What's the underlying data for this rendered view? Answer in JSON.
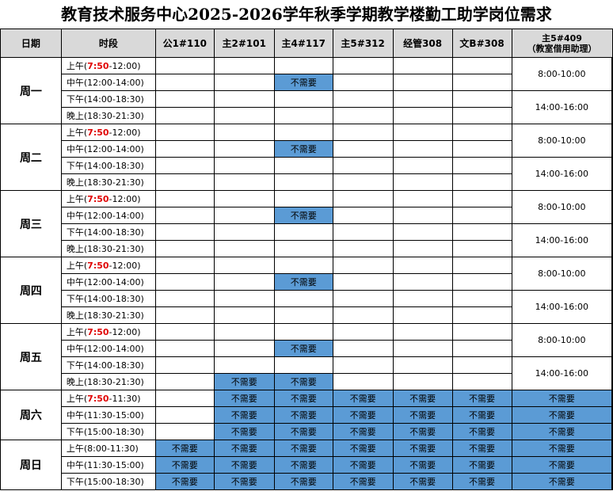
{
  "title": "教育技术服务中心2025-2026学年秋季学期教学楼勤工助学岗位需求",
  "headers": [
    "日期",
    "时段",
    "公1#110",
    "主2#101",
    "主4#117",
    "主5#312",
    "经管308",
    "文B#308",
    "主5#409",
    "（教室借用助理）"
  ],
  "weekday_periods": [
    {
      "prefix": "上午(",
      "red": "7:50",
      "suffix": "-12:00)"
    },
    {
      "prefix": "中午(12:00-14:00)",
      "red": "",
      "suffix": ""
    },
    {
      "prefix": "下午(14:00-18:30)",
      "red": "",
      "suffix": ""
    },
    {
      "prefix": "晚上(18:30-21:30)",
      "red": "",
      "suffix": ""
    }
  ],
  "saturday_periods": [
    {
      "prefix": "上午(",
      "red": "7:50",
      "suffix": "-11:30)"
    },
    {
      "prefix": "中午(11:30-15:00)",
      "red": "",
      "suffix": ""
    },
    {
      "prefix": "下午(15:00-18:30)",
      "red": "",
      "suffix": ""
    }
  ],
  "sunday_periods": [
    {
      "prefix": "上午(8:00-11:30)",
      "red": "",
      "suffix": ""
    },
    {
      "prefix": "中午(11:30-15:00)",
      "red": "",
      "suffix": ""
    },
    {
      "prefix": "下午(15:00-18:30)",
      "red": "",
      "suffix": ""
    }
  ],
  "weekdays": [
    "周一",
    "周二",
    "周三",
    "周四",
    "周五"
  ],
  "saturday": "周六",
  "sunday": "周日",
  "not_needed": "不需要",
  "slot_am": "8:00-10:00",
  "slot_pm": "14:00-16:00",
  "colors": {
    "not_needed": "#5b9bd5",
    "header": "#d9d9d9",
    "highlight": "#e00000"
  }
}
